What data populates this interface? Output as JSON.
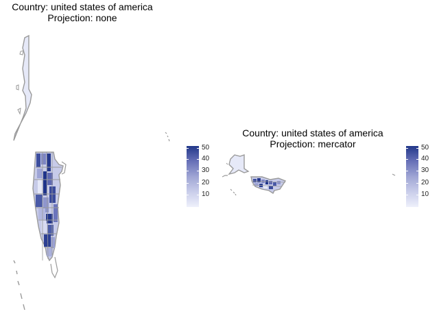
{
  "panels": [
    {
      "title_line1": "Country: united states of america",
      "title_line2": "Projection: none"
    },
    {
      "title_line1": "Country: united states of america",
      "title_line2": "Projection: mercator"
    }
  ],
  "legend": {
    "ticks": [
      "50",
      "40",
      "30",
      "20",
      "10"
    ],
    "values": [
      50,
      40,
      30,
      20,
      10
    ],
    "range": [
      2,
      52
    ],
    "colors": {
      "low": "#eef0fb",
      "high": "#22388a"
    }
  },
  "colors": {
    "border": "#9a9a9a",
    "fill_light": "#e4e7f7",
    "fill_dark": "#2b3f93"
  }
}
